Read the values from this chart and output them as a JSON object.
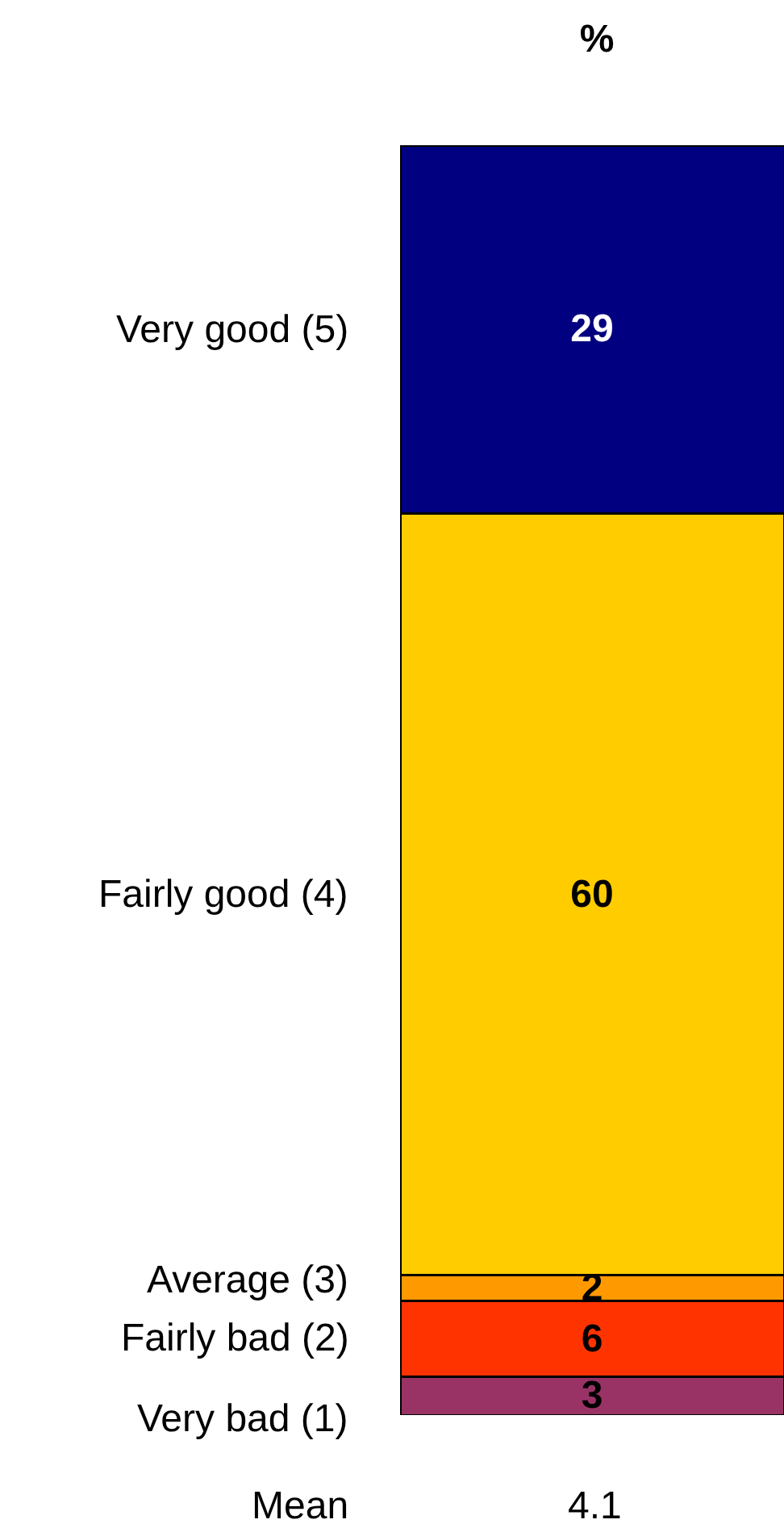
{
  "chart_data": {
    "type": "bar",
    "title": "%",
    "categories": [
      null
    ],
    "stacked": true,
    "data_labels": true,
    "series": [
      {
        "name": "Very bad (1)",
        "color": "#993366",
        "values": [
          3
        ]
      },
      {
        "name": "Fairly bad (2)",
        "color": "#ff3300",
        "values": [
          6
        ]
      },
      {
        "name": "Average (3)",
        "color": "#ff9900",
        "values": [
          2
        ]
      },
      {
        "name": "Fairly good (4)",
        "color": "#ffcc00",
        "values": [
          60
        ]
      },
      {
        "name": "Very good (5)",
        "color": "#000080",
        "values": [
          29
        ]
      }
    ],
    "annotations": [
      "Mean",
      "4.1"
    ]
  }
}
